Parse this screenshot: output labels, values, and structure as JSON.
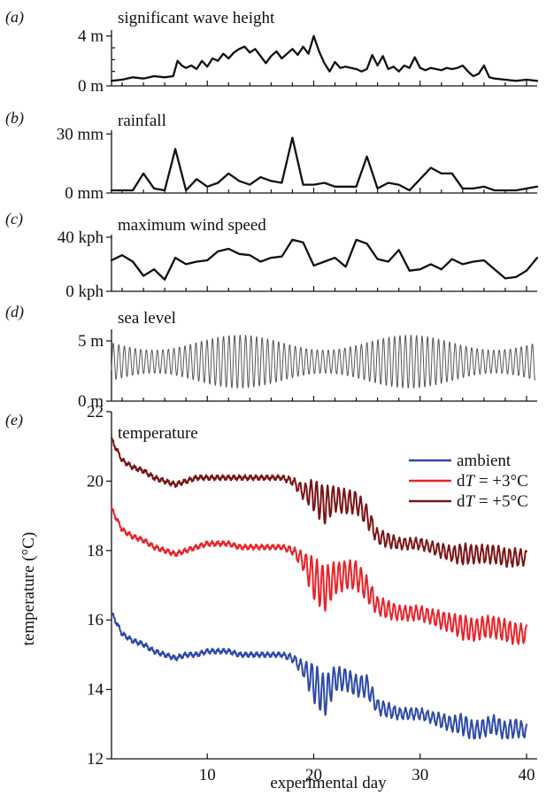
{
  "figure": {
    "x_axis": {
      "label": "experimental day",
      "range": [
        1,
        41
      ],
      "ticks": [
        10,
        20,
        30,
        40
      ],
      "tick_labels": [
        "10",
        "20",
        "30",
        "40"
      ]
    }
  },
  "chart_data": [
    {
      "panel_label": "(a)",
      "type": "line",
      "title": "significant wave height",
      "ylim": [
        0,
        4.5
      ],
      "yticks": [
        0,
        4
      ],
      "ytick_labels": [
        "0 m",
        "4 m"
      ],
      "minor_yticks": [
        1,
        2,
        3
      ],
      "grid": false,
      "series": [
        {
          "color": "#111111",
          "x": [
            1,
            2,
            3,
            4,
            5,
            6,
            6.8,
            7.2,
            7.6,
            8,
            8.5,
            9,
            9.5,
            10,
            10.5,
            11,
            11.5,
            12,
            12.5,
            13,
            13.5,
            14,
            14.5,
            15,
            15.5,
            16,
            16.5,
            17,
            17.5,
            18,
            18.5,
            19,
            19.5,
            20,
            20.5,
            21,
            21.5,
            22,
            22.5,
            23,
            23.5,
            24,
            24.5,
            25,
            25.5,
            26,
            26.5,
            27,
            27.5,
            28,
            28.5,
            29,
            29.5,
            30,
            30.5,
            31,
            31.5,
            32,
            32.5,
            33,
            33.5,
            34,
            34.5,
            35,
            35.5,
            36,
            36.5,
            37,
            38,
            39,
            40,
            41
          ],
          "values": [
            0.2,
            0.3,
            0.5,
            0.4,
            0.6,
            0.5,
            0.6,
            1.9,
            1.5,
            1.3,
            1.5,
            1.2,
            1.9,
            1.4,
            2.1,
            1.9,
            2.5,
            2.1,
            2.6,
            2.9,
            3.1,
            2.6,
            2.9,
            2.3,
            1.7,
            2.3,
            2.7,
            2.1,
            2.5,
            2.9,
            2.4,
            3.1,
            2.5,
            4.0,
            2.7,
            1.7,
            1.0,
            1.8,
            1.3,
            1.4,
            1.3,
            1.2,
            1.0,
            1.2,
            2.4,
            1.5,
            2.3,
            1.2,
            1.4,
            1.0,
            1.5,
            1.3,
            2.2,
            1.3,
            1.1,
            1.3,
            1.2,
            1.1,
            1.3,
            1.2,
            1.3,
            1.5,
            1.0,
            0.6,
            0.8,
            1.5,
            0.5,
            0.4,
            0.3,
            0.2,
            0.3,
            0.2
          ]
        }
      ]
    },
    {
      "panel_label": "(b)",
      "type": "line",
      "title": "rainfall",
      "ylim": [
        0,
        32
      ],
      "yticks": [
        0,
        30
      ],
      "ytick_labels": [
        "0 mm",
        "30 mm"
      ],
      "grid": false,
      "series": [
        {
          "color": "#111111",
          "x": [
            1,
            2,
            3,
            4,
            5,
            6,
            7,
            8,
            9,
            10,
            11,
            12,
            13,
            14,
            15,
            16,
            17,
            18,
            19,
            20,
            21,
            22,
            23,
            24,
            25,
            26,
            27,
            28,
            29,
            30,
            31,
            32,
            33,
            34,
            35,
            36,
            37,
            38,
            39,
            40,
            41
          ],
          "values": [
            0,
            0,
            0,
            9,
            1,
            0,
            22,
            0,
            6,
            2,
            4,
            9,
            5,
            3,
            7,
            5,
            4,
            28,
            3,
            3,
            4,
            2,
            2,
            2,
            18,
            1,
            4,
            3,
            0,
            6,
            12,
            9,
            9,
            1,
            1,
            2,
            0,
            0,
            0,
            1,
            2
          ]
        }
      ]
    },
    {
      "panel_label": "(c)",
      "type": "line",
      "title": "maximum wind speed",
      "ylim": [
        0,
        42
      ],
      "yticks": [
        0,
        40
      ],
      "ytick_labels": [
        "0 kph",
        "40 kph"
      ],
      "grid": false,
      "series": [
        {
          "color": "#111111",
          "x": [
            1,
            2,
            3,
            4,
            5,
            6,
            7,
            8,
            9,
            10,
            11,
            12,
            13,
            14,
            15,
            16,
            17,
            18,
            19,
            20,
            21,
            22,
            23,
            24,
            25,
            26,
            27,
            28,
            29,
            30,
            31,
            32,
            33,
            34,
            35,
            36,
            37,
            38,
            39,
            40,
            41
          ],
          "values": [
            22,
            26,
            21,
            10,
            15,
            7,
            24,
            19,
            21,
            22,
            29,
            31,
            27,
            26,
            21,
            24,
            25,
            38,
            36,
            18,
            21,
            24,
            17,
            38,
            35,
            23,
            21,
            30,
            14,
            15,
            19,
            15,
            23,
            19,
            21,
            22,
            15,
            8,
            9,
            14,
            24
          ]
        }
      ]
    },
    {
      "panel_label": "(d)",
      "type": "line",
      "title": "sea level",
      "ylim": [
        0,
        6
      ],
      "yticks": [
        0,
        5
      ],
      "ytick_labels": [
        "0 m",
        "5 m"
      ],
      "grid": false,
      "series": [
        {
          "color": "#555555",
          "description_free": true,
          "tide_cycles_per_day": 1.93,
          "mean_level_m": 3.2,
          "spring_amplitude_m": 2.3,
          "neap_amplitude_m": 1.0,
          "spring_tide_days": [
            13,
            29
          ],
          "neap_tide_days": [
            5,
            21,
            37
          ]
        }
      ]
    },
    {
      "panel_label": "(e)",
      "type": "line",
      "title": "temperature",
      "xlabel": "experimental day",
      "ylabel": "temperature (°C)",
      "ylim": [
        12,
        22
      ],
      "yticks": [
        12,
        14,
        16,
        18,
        20,
        22
      ],
      "ytick_labels": [
        "12",
        "14",
        "16",
        "18",
        "20",
        "22"
      ],
      "legend": "top-right",
      "grid": false,
      "series": [
        {
          "name": "ambient",
          "legend_text": "ambient",
          "color": "#2d4aa6",
          "x": [
            1,
            2,
            3,
            4,
            5,
            6,
            7,
            8,
            9,
            10,
            11,
            12,
            13,
            14,
            15,
            16,
            17,
            18,
            19,
            20,
            21,
            22,
            23,
            24,
            25,
            26,
            27,
            28,
            29,
            30,
            31,
            32,
            33,
            34,
            35,
            36,
            37,
            38,
            39,
            40
          ],
          "values": [
            16.2,
            15.6,
            15.4,
            15.3,
            15.1,
            15.0,
            14.9,
            15.0,
            15.0,
            15.1,
            15.1,
            15.1,
            15.0,
            15.0,
            15.0,
            15.0,
            15.0,
            14.9,
            14.6,
            14.2,
            13.8,
            14.3,
            14.3,
            14.1,
            14.1,
            13.5,
            13.4,
            13.3,
            13.3,
            13.3,
            13.2,
            13.1,
            13.0,
            13.0,
            12.8,
            12.9,
            13.0,
            12.8,
            12.9,
            12.8
          ],
          "oscillation_amplitude": [
            0.05,
            0.05,
            0.05,
            0.05,
            0.05,
            0.05,
            0.05,
            0.05,
            0.05,
            0.05,
            0.05,
            0.05,
            0.05,
            0.05,
            0.05,
            0.05,
            0.05,
            0.1,
            0.2,
            0.55,
            0.6,
            0.35,
            0.3,
            0.3,
            0.3,
            0.2,
            0.2,
            0.15,
            0.15,
            0.15,
            0.15,
            0.2,
            0.2,
            0.3,
            0.25,
            0.25,
            0.25,
            0.25,
            0.25,
            0.2
          ]
        },
        {
          "name": "dT = +3°C",
          "legend_text": [
            "d",
            "T",
            " = +3°C"
          ],
          "color": "#e8242a",
          "x": [
            1,
            2,
            3,
            4,
            5,
            6,
            7,
            8,
            9,
            10,
            11,
            12,
            13,
            14,
            15,
            16,
            17,
            18,
            19,
            20,
            21,
            22,
            23,
            24,
            25,
            26,
            27,
            28,
            29,
            30,
            31,
            32,
            33,
            34,
            35,
            36,
            37,
            38,
            39,
            40
          ],
          "values": [
            19.2,
            18.6,
            18.4,
            18.3,
            18.1,
            18.0,
            17.9,
            18.0,
            18.1,
            18.2,
            18.2,
            18.2,
            18.1,
            18.1,
            18.1,
            18.1,
            18.1,
            18.0,
            17.7,
            17.2,
            16.9,
            17.2,
            17.3,
            17.3,
            16.9,
            16.4,
            16.3,
            16.2,
            16.2,
            16.2,
            16.1,
            16.0,
            15.9,
            15.8,
            15.7,
            15.8,
            15.8,
            15.7,
            15.6,
            15.6
          ],
          "oscillation_amplitude": [
            0.05,
            0.05,
            0.05,
            0.05,
            0.05,
            0.05,
            0.05,
            0.05,
            0.05,
            0.05,
            0.05,
            0.05,
            0.05,
            0.05,
            0.05,
            0.05,
            0.05,
            0.1,
            0.25,
            0.6,
            0.65,
            0.45,
            0.4,
            0.4,
            0.35,
            0.25,
            0.25,
            0.2,
            0.2,
            0.2,
            0.2,
            0.25,
            0.25,
            0.35,
            0.3,
            0.3,
            0.3,
            0.3,
            0.3,
            0.25
          ]
        },
        {
          "name": "dT = +5°C",
          "legend_text": [
            "d",
            "T",
            " = +5°C"
          ],
          "color": "#7a1416",
          "x": [
            1,
            2,
            3,
            4,
            5,
            6,
            7,
            8,
            9,
            10,
            11,
            12,
            13,
            14,
            15,
            16,
            17,
            18,
            19,
            20,
            21,
            22,
            23,
            24,
            25,
            26,
            27,
            28,
            29,
            30,
            31,
            32,
            33,
            34,
            35,
            36,
            37,
            38,
            39,
            40
          ],
          "values": [
            21.2,
            20.6,
            20.4,
            20.3,
            20.1,
            20.0,
            19.9,
            20.0,
            20.1,
            20.1,
            20.1,
            20.1,
            20.1,
            20.1,
            20.1,
            20.1,
            20.1,
            20.0,
            19.7,
            19.6,
            19.3,
            19.5,
            19.4,
            19.4,
            19.0,
            18.4,
            18.3,
            18.2,
            18.2,
            18.2,
            18.1,
            18.0,
            17.9,
            17.9,
            17.9,
            17.9,
            17.9,
            17.8,
            17.8,
            17.8
          ],
          "oscillation_amplitude": [
            0.05,
            0.05,
            0.05,
            0.05,
            0.05,
            0.05,
            0.05,
            0.05,
            0.05,
            0.05,
            0.05,
            0.05,
            0.05,
            0.05,
            0.05,
            0.05,
            0.05,
            0.1,
            0.2,
            0.45,
            0.55,
            0.35,
            0.35,
            0.3,
            0.3,
            0.2,
            0.2,
            0.15,
            0.15,
            0.15,
            0.15,
            0.2,
            0.2,
            0.3,
            0.25,
            0.25,
            0.25,
            0.25,
            0.25,
            0.2
          ]
        }
      ]
    }
  ]
}
